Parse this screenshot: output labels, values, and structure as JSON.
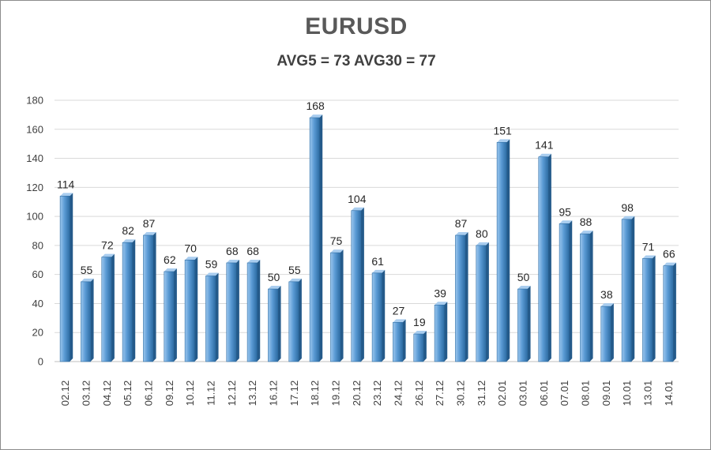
{
  "chart_data": {
    "type": "bar",
    "title": "EURUSD",
    "subtitle": "AVG5 = 73 AVG30 = 77",
    "xlabel": "",
    "ylabel": "",
    "ylim": [
      0,
      180
    ],
    "yticks": [
      0,
      20,
      40,
      60,
      80,
      100,
      120,
      140,
      160,
      180
    ],
    "grid": true,
    "legend": "none",
    "bar_color": "#5b9bd5",
    "categories": [
      "02.12",
      "03.12",
      "04.12",
      "05.12",
      "06.12",
      "09.12",
      "10.12",
      "11.12",
      "12.12",
      "13.12",
      "16.12",
      "17.12",
      "18.12",
      "19.12",
      "20.12",
      "23.12",
      "24.12",
      "26.12",
      "27.12",
      "30.12",
      "31.12",
      "02.01",
      "03.01",
      "06.01",
      "07.01",
      "08.01",
      "09.01",
      "10.01",
      "13.01",
      "14.01"
    ],
    "values": [
      114,
      55,
      72,
      82,
      87,
      62,
      70,
      59,
      68,
      68,
      50,
      55,
      168,
      75,
      104,
      61,
      27,
      19,
      39,
      87,
      80,
      151,
      50,
      141,
      95,
      88,
      38,
      98,
      71,
      66
    ]
  }
}
